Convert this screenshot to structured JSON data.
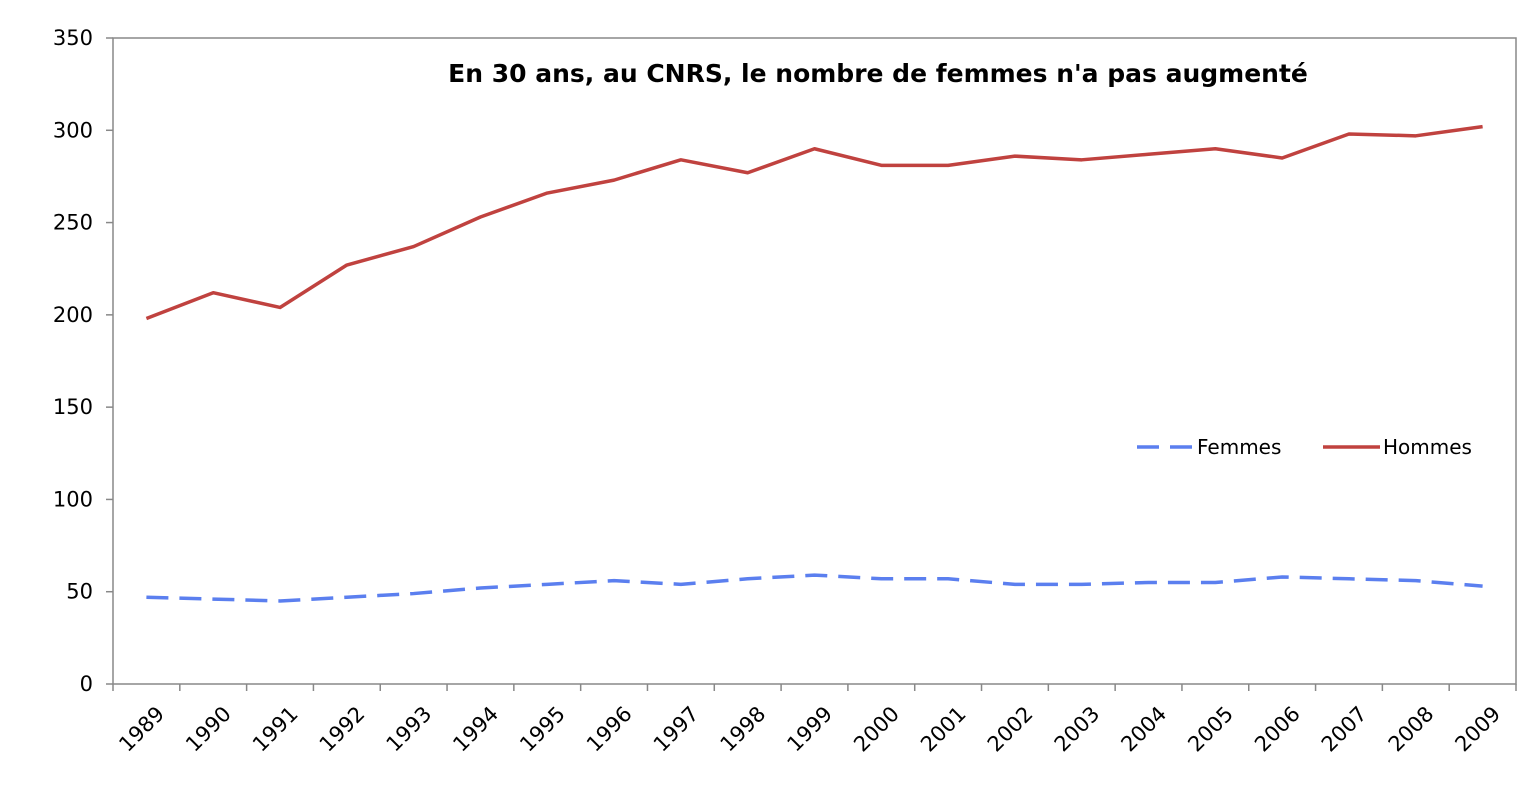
{
  "chart_data": {
    "type": "line",
    "title": "En 30 ans, au CNRS, le nombre de femmes n'a pas augmenté",
    "xlabel": "",
    "ylabel": "",
    "categories": [
      "1989",
      "1990",
      "1991",
      "1992",
      "1993",
      "1994",
      "1995",
      "1996",
      "1997",
      "1998",
      "1999",
      "2000",
      "2001",
      "2002",
      "2003",
      "2004",
      "2005",
      "2006",
      "2007",
      "2008",
      "2009"
    ],
    "ylim": [
      0,
      350
    ],
    "yticks": [
      0,
      50,
      100,
      150,
      200,
      250,
      300,
      350
    ],
    "grid": false,
    "legend_position": "right",
    "series": [
      {
        "name": "Femmes",
        "color": "#5b7fef",
        "style": "dashed",
        "values": [
          47,
          46,
          45,
          47,
          49,
          52,
          54,
          56,
          54,
          57,
          59,
          57,
          57,
          54,
          54,
          55,
          55,
          58,
          57,
          56,
          53
        ]
      },
      {
        "name": "Hommes",
        "color": "#c0423f",
        "style": "solid",
        "values": [
          198,
          212,
          204,
          227,
          237,
          253,
          266,
          273,
          284,
          277,
          290,
          281,
          281,
          286,
          284,
          287,
          290,
          285,
          298,
          297,
          302
        ]
      }
    ]
  }
}
